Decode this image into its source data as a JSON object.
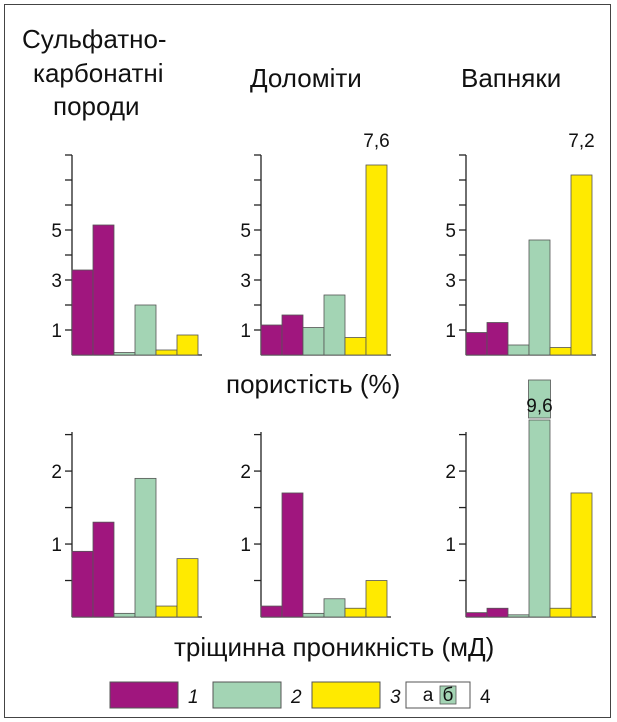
{
  "colors": {
    "type1": "#a0167e",
    "type2": "#a3d4b4",
    "type3": "#ffea00"
  },
  "chart_data": {
    "type": "bar",
    "column_titles": [
      [
        "Сульфатно-",
        "карбонатні",
        "породи"
      ],
      [
        "Доломіти"
      ],
      [
        "Вапняки"
      ]
    ],
    "panels": [
      {
        "row": "porosity",
        "column": 0,
        "yticks": [
          "1",
          "3",
          "5"
        ],
        "ylim": [
          0,
          8
        ],
        "bars": [
          3.4,
          5.2,
          0.1,
          2.0,
          0.2,
          0.8
        ],
        "value_labels": []
      },
      {
        "row": "porosity",
        "column": 1,
        "yticks": [
          "1",
          "3",
          "5"
        ],
        "ylim": [
          0,
          8
        ],
        "bars": [
          1.2,
          1.6,
          1.1,
          2.4,
          0.7,
          7.6
        ],
        "value_labels": [
          {
            "bar": 5,
            "text": "7,6"
          }
        ]
      },
      {
        "row": "porosity",
        "column": 2,
        "yticks": [
          "1",
          "3",
          "5"
        ],
        "ylim": [
          0,
          8
        ],
        "bars": [
          0.9,
          1.3,
          0.4,
          4.6,
          0.3,
          7.2
        ],
        "value_labels": [
          {
            "bar": 5,
            "text": "7,2"
          }
        ]
      },
      {
        "row": "permeability",
        "column": 0,
        "yticks": [
          "1",
          "2"
        ],
        "ylim": [
          0,
          2.7
        ],
        "bars": [
          0.9,
          1.3,
          0.05,
          1.9,
          0.15,
          0.8
        ],
        "value_labels": []
      },
      {
        "row": "permeability",
        "column": 1,
        "yticks": [
          "1",
          "2"
        ],
        "ylim": [
          0,
          2.7
        ],
        "bars": [
          0.15,
          1.7,
          0.05,
          0.25,
          0.12,
          0.5
        ],
        "value_labels": []
      },
      {
        "row": "permeability",
        "column": 2,
        "yticks": [
          "1",
          "2"
        ],
        "ylim": [
          0,
          2.7
        ],
        "bars": [
          0.06,
          0.12,
          0.03,
          9.6,
          0.12,
          1.7
        ],
        "value_labels": [
          {
            "bar": 3,
            "text": "9,6"
          }
        ]
      }
    ],
    "row_labels": {
      "porosity": "пористість (%)",
      "permeability": "тріщинна проникність (мД)"
    },
    "legend": [
      {
        "number": "1",
        "color_key": "type1"
      },
      {
        "number": "2",
        "color_key": "type2"
      },
      {
        "number": "3",
        "color_key": "type3"
      },
      {
        "number": "4",
        "sub_labels": [
          "а",
          "б"
        ]
      }
    ]
  }
}
